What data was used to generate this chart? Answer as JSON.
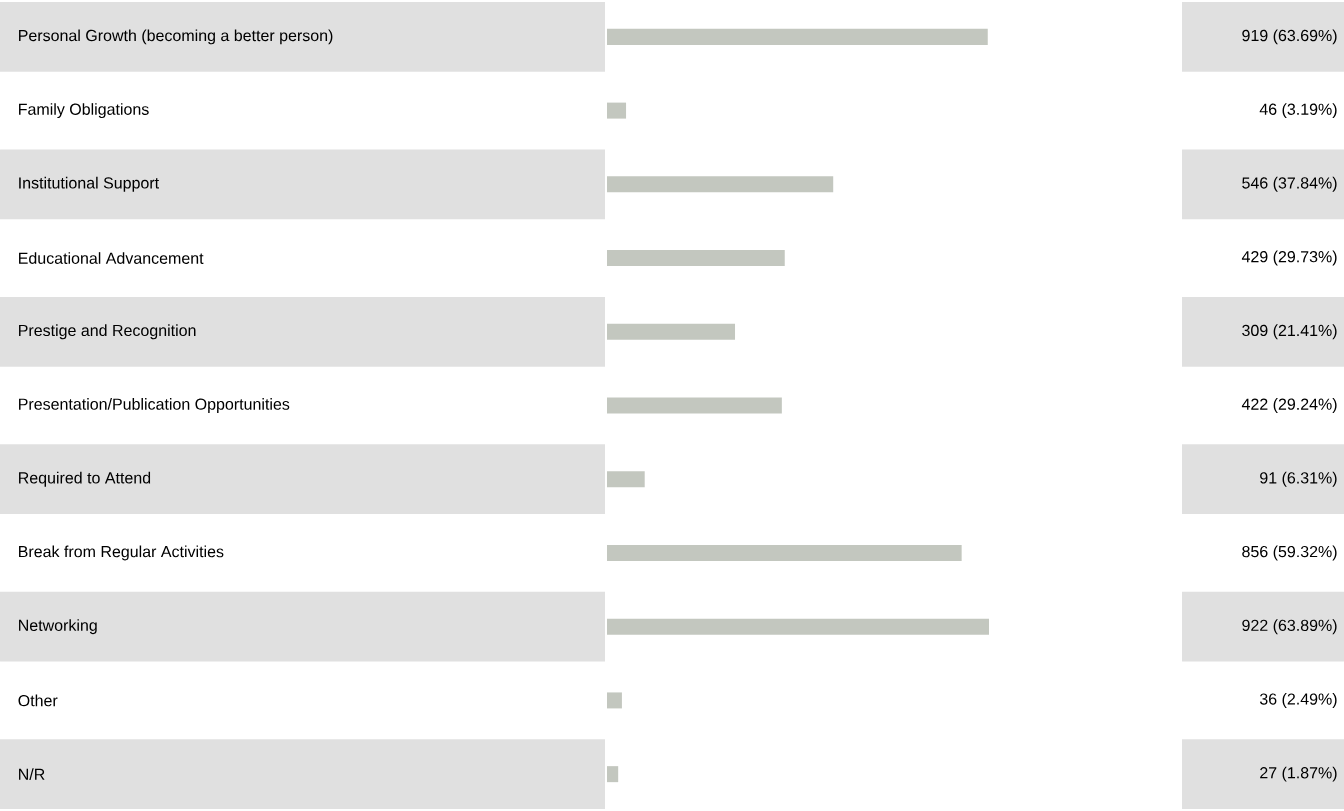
{
  "chart_data": {
    "type": "bar",
    "orientation": "horizontal",
    "categories": [
      "Personal Growth (becoming a better person)",
      "Family Obligations",
      "Institutional Support",
      "Educational Advancement",
      "Prestige and Recognition",
      "Presentation/Publication Opportunities",
      "Required to Attend",
      "Break from Regular Activities",
      "Networking",
      "Other",
      "N/R"
    ],
    "values": [
      919,
      46,
      546,
      429,
      309,
      422,
      91,
      856,
      922,
      36,
      27
    ],
    "value_labels": [
      "919 (63.69%)",
      "46 (3.19%)",
      "546 (37.84%)",
      "429 (29.73%)",
      "309 (21.41%)",
      "422 (29.24%)",
      "91 (6.31%)",
      "856 (59.32%)",
      "922 (63.89%)",
      "36 (2.49%)",
      "27 (1.87%)"
    ],
    "color": "#c3c7bf"
  }
}
